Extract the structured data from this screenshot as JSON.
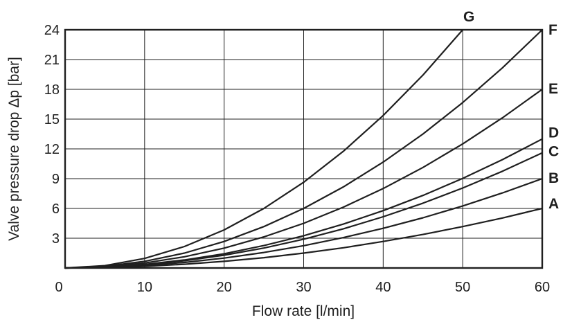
{
  "chart_data": {
    "type": "line",
    "title": "",
    "xlabel": "Flow rate [l/min]",
    "ylabel": "Valve pressure drop Δp [bar]",
    "xlim": [
      0,
      60
    ],
    "ylim": [
      0,
      24
    ],
    "xticks": [
      0,
      10,
      20,
      30,
      40,
      50,
      60
    ],
    "yticks": [
      3,
      6,
      9,
      12,
      15,
      18,
      21,
      24
    ],
    "grid": true,
    "legend_position": "line-end-labels",
    "background_color": "#ffffff",
    "line_color": "#1f1f1f",
    "grid_color": "#1f1f1f",
    "text_color": "#1f1f1f",
    "series": [
      {
        "name": "A",
        "label": "A",
        "label_dy": -7,
        "x": [
          0,
          5,
          10,
          15,
          20,
          25,
          30,
          35,
          40,
          45,
          50,
          55,
          60
        ],
        "y": [
          0,
          0.04,
          0.17,
          0.38,
          0.67,
          1.04,
          1.5,
          2.04,
          2.67,
          3.38,
          4.17,
          5.04,
          6
        ]
      },
      {
        "name": "B",
        "label": "B",
        "label_dy": -1,
        "x": [
          0,
          5,
          10,
          15,
          20,
          25,
          30,
          35,
          40,
          45,
          50,
          55,
          60
        ],
        "y": [
          0,
          0.06,
          0.25,
          0.56,
          1.0,
          1.56,
          2.25,
          3.06,
          4.0,
          5.06,
          6.25,
          7.56,
          9
        ]
      },
      {
        "name": "C",
        "label": "C",
        "label_dy": -2,
        "x": [
          0,
          5,
          10,
          15,
          20,
          25,
          30,
          35,
          40,
          45,
          50,
          55,
          60
        ],
        "y": [
          0,
          0.08,
          0.32,
          0.73,
          1.29,
          2.01,
          2.9,
          3.95,
          5.16,
          6.53,
          8.06,
          9.75,
          11.6
        ]
      },
      {
        "name": "D",
        "label": "D",
        "label_dy": -9,
        "x": [
          0,
          5,
          10,
          15,
          20,
          25,
          30,
          35,
          40,
          45,
          50,
          55,
          60
        ],
        "y": [
          0,
          0.09,
          0.36,
          0.81,
          1.44,
          2.26,
          3.25,
          4.42,
          5.78,
          7.31,
          9.03,
          10.92,
          13
        ]
      },
      {
        "name": "E",
        "label": "E",
        "label_dy": -1,
        "x": [
          0,
          5,
          10,
          15,
          20,
          25,
          30,
          35,
          40,
          45,
          50,
          55,
          60
        ],
        "y": [
          0,
          0.13,
          0.5,
          1.13,
          2.0,
          3.13,
          4.5,
          6.13,
          8.0,
          10.13,
          12.5,
          15.13,
          18
        ]
      },
      {
        "name": "F",
        "label": "F",
        "label_dy": 0,
        "x": [
          0,
          5,
          10,
          15,
          20,
          25,
          30,
          35,
          40,
          45,
          50,
          55,
          60
        ],
        "y": [
          0,
          0.17,
          0.67,
          1.5,
          2.67,
          4.17,
          6.0,
          8.17,
          10.67,
          13.5,
          16.67,
          20.17,
          24
        ]
      },
      {
        "name": "G",
        "label": "G",
        "label_dy": 0,
        "x": [
          0,
          5,
          10,
          15,
          20,
          25,
          30,
          35,
          40,
          45,
          50
        ],
        "y": [
          0,
          0.24,
          0.96,
          2.16,
          3.84,
          6.0,
          8.64,
          11.76,
          15.36,
          19.44,
          24
        ]
      }
    ]
  }
}
